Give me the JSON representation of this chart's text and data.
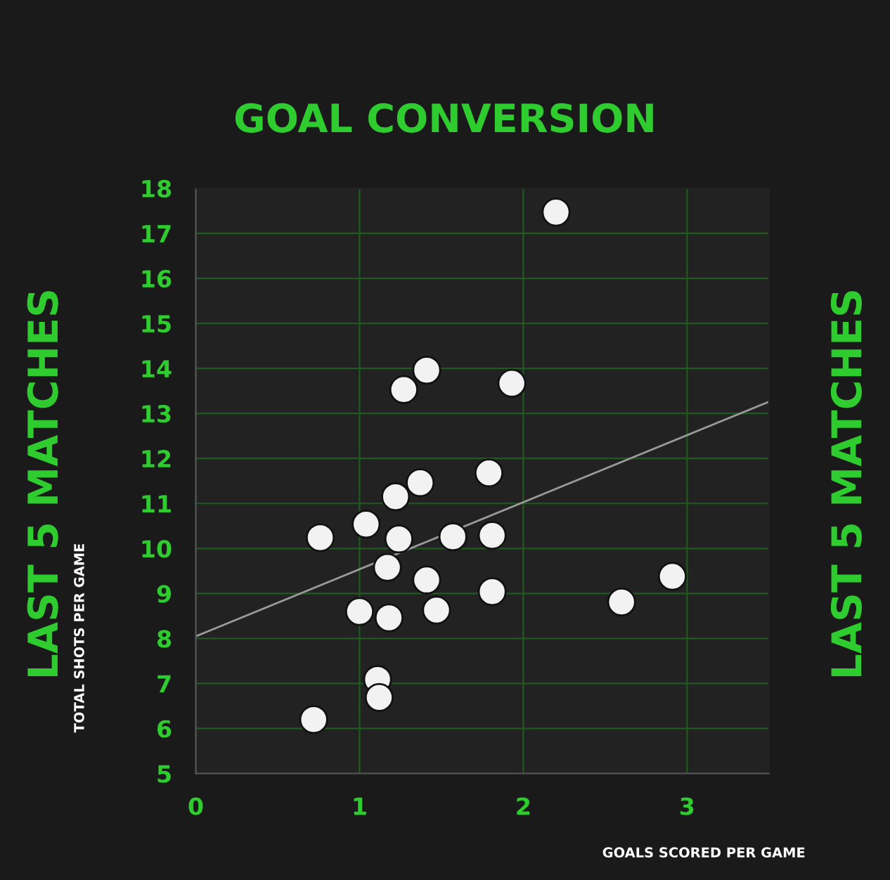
{
  "chart_data": {
    "type": "scatter",
    "title": "GOAL CONVERSION",
    "xlabel": "GOALS SCORED PER GAME",
    "ylabel": "TOTAL SHOTS PER GAME",
    "annotations": [
      "LAST 5 MATCHES",
      "LAST 5 MATCHES"
    ],
    "xlim": [
      0,
      3.5
    ],
    "ylim": [
      5,
      18
    ],
    "xticks": [
      0,
      1,
      2,
      3
    ],
    "yticks": [
      5,
      6,
      7,
      8,
      9,
      10,
      11,
      12,
      13,
      14,
      15,
      16,
      17,
      18
    ],
    "grid": true,
    "series": [
      {
        "marker": "circle",
        "color": "#f2f2f2",
        "x": [
          2.2,
          1.41,
          1.27,
          1.93,
          1.79,
          1.37,
          1.22,
          1.04,
          0.76,
          1.24,
          1.57,
          1.81,
          1.17,
          1.41,
          1.81,
          2.91,
          2.6,
          1.0,
          1.18,
          1.47,
          1.11,
          1.12,
          0.72
        ],
        "values": [
          17.47,
          13.96,
          13.53,
          13.67,
          11.68,
          11.46,
          11.15,
          10.54,
          10.24,
          10.21,
          10.26,
          10.29,
          9.58,
          9.3,
          9.04,
          9.38,
          8.81,
          8.6,
          8.46,
          8.63,
          7.09,
          6.69,
          6.2
        ]
      },
      {
        "type": "line",
        "color": "#9a9a9a",
        "x": [
          0,
          3.5
        ],
        "values": [
          8.05,
          13.26
        ]
      }
    ]
  }
}
